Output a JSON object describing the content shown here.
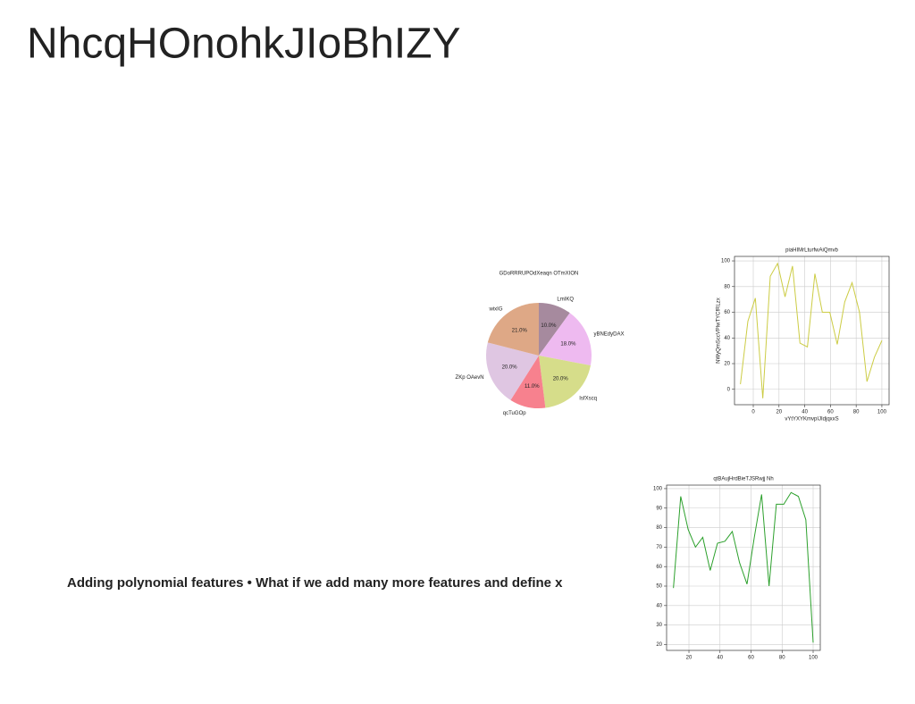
{
  "title": "NhcqHOnohkJIoBhIZY",
  "body_text": "Adding polynomial features • What if we add many more features and define x",
  "chart_data": [
    {
      "type": "pie",
      "title": "GDoRRRUPOdXeaqn OTmXION",
      "categories": [
        "LmIKQ",
        "yBNEdyDAX",
        "IsfXscq",
        "qcTuGOp",
        "ZKp OAevN",
        "wixIG"
      ],
      "values": [
        10,
        18,
        20,
        11,
        20,
        21
      ],
      "value_labels": [
        "10.0%",
        "18.0%",
        "20.0%",
        "11.0%",
        "20.0%",
        "21.0%"
      ],
      "colors": [
        "#a68a9e",
        "#eebaf0",
        "#d6dd8a",
        "#f7818e",
        "#dfc6e2",
        "#dea886"
      ]
    },
    {
      "type": "line",
      "title": "piaHIMrLturfwAiQmvb",
      "xlabel": "vYtYXYKmvpIJIdjqxxS",
      "ylabel": "NWyQmSccVPlwTYCfRLzx",
      "x": [
        -10,
        -4.2,
        1.6,
        7.4,
        13.2,
        18.9,
        24.7,
        30.5,
        36.3,
        42.1,
        47.9,
        53.7,
        59.5,
        65.3,
        71.1,
        76.8,
        82.6,
        88.4,
        94.2,
        100
      ],
      "series": [
        {
          "color": "#cccc44",
          "values": [
            4,
            53,
            71,
            -7,
            88,
            98,
            72,
            96,
            36,
            33,
            90,
            60,
            60,
            35,
            68,
            83,
            60,
            6,
            25,
            38
          ]
        }
      ],
      "xlim": [
        -14.6,
        105.6
      ],
      "ylim": [
        -12,
        103.5
      ],
      "xticks": [
        0,
        20,
        40,
        60,
        80,
        100
      ],
      "yticks": [
        0,
        20,
        40,
        60,
        80,
        100
      ],
      "grid": true
    },
    {
      "type": "line",
      "title": "qtBAujHrdBieTJSRwjj Nh",
      "x": [
        10,
        14.7,
        19.5,
        24.2,
        28.9,
        33.7,
        38.4,
        43.2,
        47.9,
        52.6,
        57.4,
        62.1,
        66.8,
        71.6,
        76.3,
        81.1,
        85.8,
        90.5,
        95.3,
        100
      ],
      "series": [
        {
          "color": "#2ca02c",
          "values": [
            49,
            96,
            79,
            70,
            75,
            58,
            72,
            73,
            78,
            62,
            51,
            75,
            97,
            50,
            92,
            92,
            98,
            96,
            84,
            21
          ]
        }
      ],
      "xlim": [
        5.6,
        104.6
      ],
      "ylim": [
        17,
        101.8
      ],
      "xticks": [
        20,
        40,
        60,
        80,
        100
      ],
      "yticks": [
        20,
        30,
        40,
        50,
        60,
        70,
        80,
        90,
        100
      ],
      "grid": true
    }
  ]
}
